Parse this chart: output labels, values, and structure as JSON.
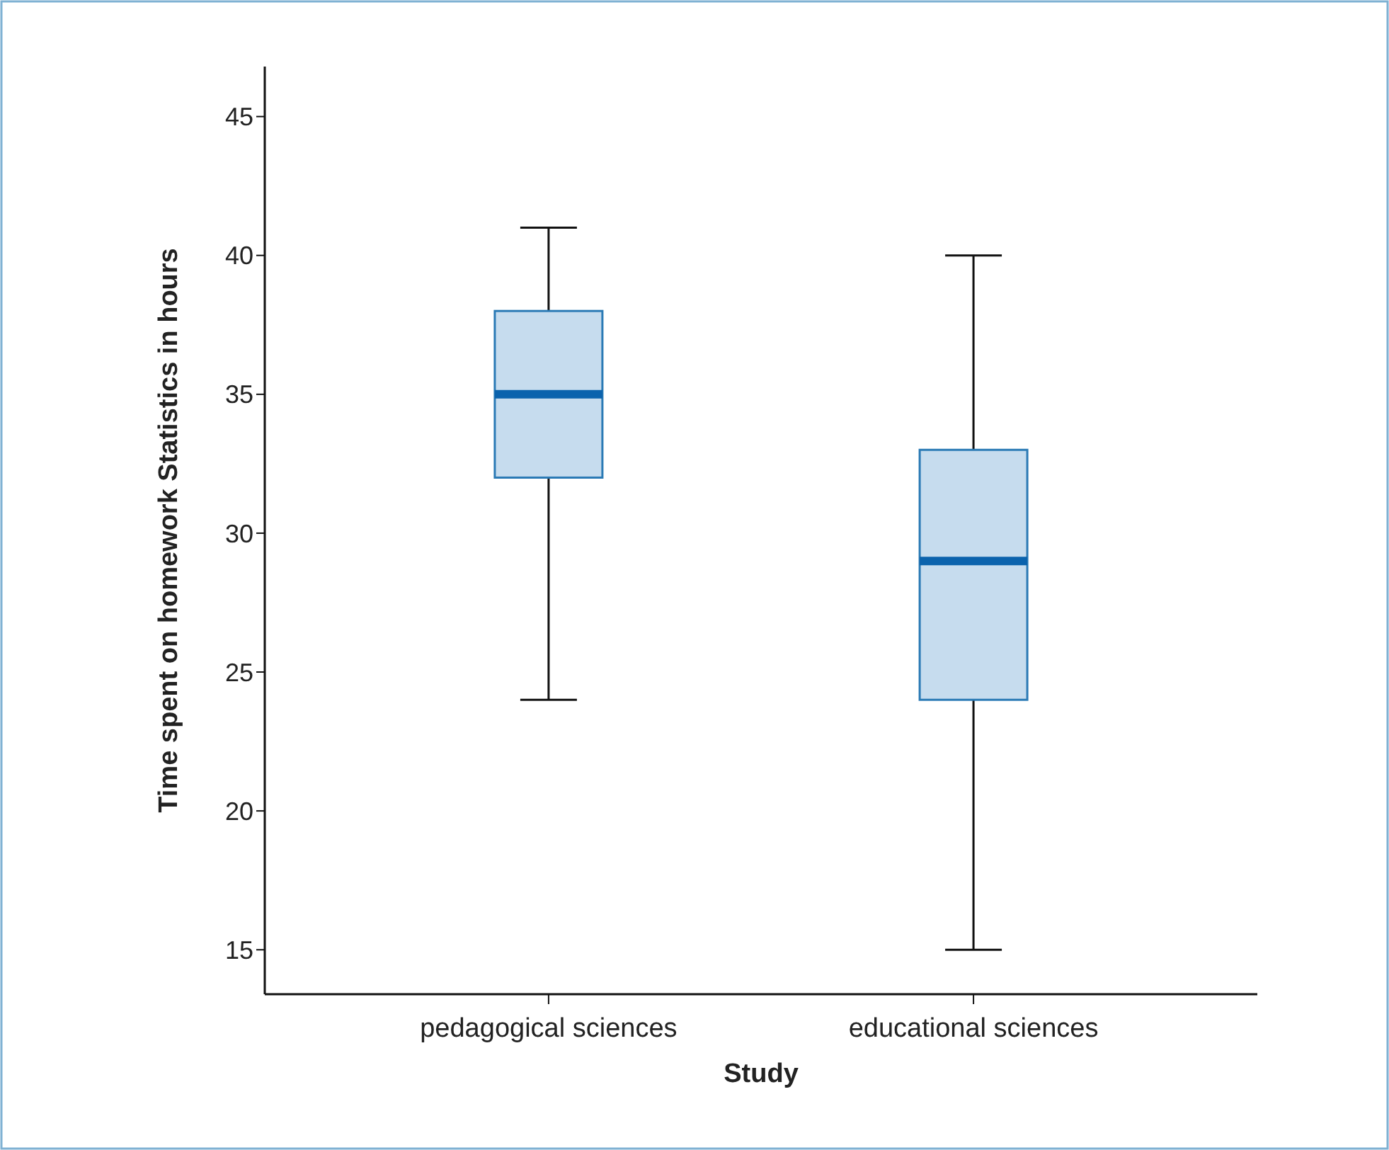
{
  "chart_data": {
    "type": "box",
    "xlabel": "Study",
    "ylabel": "Time spent on homework Statistics in hours",
    "categories": [
      "pedagogical sciences",
      "educational sciences"
    ],
    "series": [
      {
        "color": "#c6dcee",
        "boxes": [
          {
            "low": 24,
            "q1": 32,
            "median": 35,
            "q3": 38,
            "high": 41
          },
          {
            "low": 15,
            "q1": 24,
            "median": 29,
            "q3": 33,
            "high": 40
          }
        ]
      }
    ],
    "ylim": [
      13.4,
      46.8
    ],
    "yticks": [
      15,
      20,
      25,
      30,
      35,
      40,
      45
    ],
    "grid": false
  }
}
